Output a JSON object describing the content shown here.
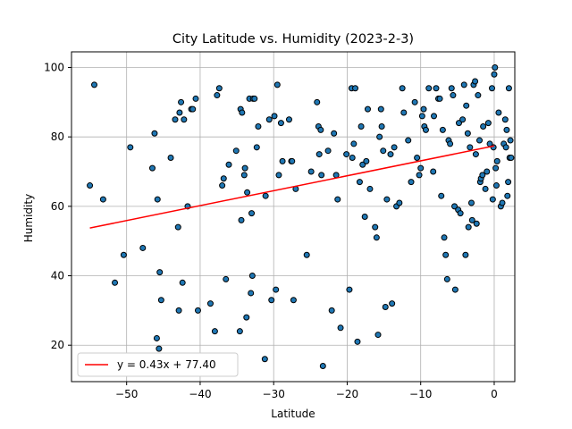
{
  "chart_data": {
    "type": "scatter",
    "title": "City Latitude vs. Humidity (2023-2-3)",
    "xlabel": "Latitude",
    "ylabel": "Humidity",
    "xlim": [
      -57.5,
      2.8
    ],
    "ylim": [
      9.5,
      104.5
    ],
    "xticks": [
      -50,
      -40,
      -30,
      -20,
      -10,
      0
    ],
    "yticks": [
      20,
      40,
      60,
      80,
      100
    ],
    "grid": true,
    "marker_color": "#1f77b4",
    "marker_edge": "#000000",
    "regression": {
      "slope": 0.43,
      "intercept": 77.4,
      "x_range": [
        -55,
        0
      ],
      "color": "#ff0000",
      "label": "y = 0.43x + 77.40"
    },
    "legend_position": "lower-left",
    "points": [
      [
        -55,
        66
      ],
      [
        -54.4,
        95
      ],
      [
        -53.2,
        62
      ],
      [
        -51.6,
        38
      ],
      [
        -50.4,
        46
      ],
      [
        -49.5,
        77
      ],
      [
        -47.8,
        48
      ],
      [
        -46.5,
        71
      ],
      [
        -46.2,
        81
      ],
      [
        -45.9,
        22
      ],
      [
        -45.8,
        62
      ],
      [
        -45.6,
        19
      ],
      [
        -45.5,
        41
      ],
      [
        -45.3,
        33
      ],
      [
        -44,
        74
      ],
      [
        -43.4,
        85
      ],
      [
        -43,
        54
      ],
      [
        -42.9,
        30
      ],
      [
        -42.8,
        87
      ],
      [
        -42.6,
        90
      ],
      [
        -42.4,
        38
      ],
      [
        -42.2,
        85
      ],
      [
        -41.7,
        60
      ],
      [
        -41.2,
        88
      ],
      [
        -41,
        88
      ],
      [
        -40.6,
        91
      ],
      [
        -40.3,
        30
      ],
      [
        -39,
        16
      ],
      [
        -38.6,
        32
      ],
      [
        -38,
        24
      ],
      [
        -37.7,
        92
      ],
      [
        -37.4,
        94
      ],
      [
        -37,
        66
      ],
      [
        -36.8,
        68
      ],
      [
        -36.5,
        39
      ],
      [
        -36.1,
        72
      ],
      [
        -35.8,
        16
      ],
      [
        -35.1,
        76
      ],
      [
        -34.6,
        24
      ],
      [
        -34.4,
        56
      ],
      [
        -34.5,
        88
      ],
      [
        -34.3,
        87
      ],
      [
        -34,
        69
      ],
      [
        -33.9,
        71
      ],
      [
        -33.7,
        28
      ],
      [
        -33.6,
        64
      ],
      [
        -33.3,
        91
      ],
      [
        -33.1,
        35
      ],
      [
        -33,
        58
      ],
      [
        -32.9,
        40
      ],
      [
        -32.8,
        91
      ],
      [
        -32.6,
        91
      ],
      [
        -32.3,
        77
      ],
      [
        -32.1,
        83
      ],
      [
        -31.2,
        16
      ],
      [
        -31.1,
        63
      ],
      [
        -30.6,
        85
      ],
      [
        -30.3,
        33
      ],
      [
        -29.9,
        86
      ],
      [
        -29.7,
        36
      ],
      [
        -29.5,
        95
      ],
      [
        -29.3,
        69
      ],
      [
        -29,
        84
      ],
      [
        -28.8,
        73
      ],
      [
        -27.9,
        85
      ],
      [
        -27.6,
        73
      ],
      [
        -27.5,
        73
      ],
      [
        -27.3,
        33
      ],
      [
        -27,
        65
      ],
      [
        -25.5,
        46
      ],
      [
        -24.9,
        70
      ],
      [
        -24.1,
        90
      ],
      [
        -23.9,
        83
      ],
      [
        -23.8,
        75
      ],
      [
        -23.6,
        82
      ],
      [
        -23.5,
        69
      ],
      [
        -23.3,
        14
      ],
      [
        -22.6,
        76
      ],
      [
        -22.1,
        30
      ],
      [
        -21.8,
        81
      ],
      [
        -21.5,
        69
      ],
      [
        -21.3,
        62
      ],
      [
        -20.9,
        25
      ],
      [
        -20.1,
        75
      ],
      [
        -19.7,
        36
      ],
      [
        -19.4,
        94
      ],
      [
        -19.3,
        74
      ],
      [
        -19.1,
        78
      ],
      [
        -18.9,
        94
      ],
      [
        -18.6,
        21
      ],
      [
        -18.3,
        67
      ],
      [
        -18.1,
        83
      ],
      [
        -17.9,
        72
      ],
      [
        -17.6,
        57
      ],
      [
        -17.4,
        73
      ],
      [
        -17.2,
        88
      ],
      [
        -16.9,
        65
      ],
      [
        -16.2,
        54
      ],
      [
        -16,
        51
      ],
      [
        -15.8,
        23
      ],
      [
        -15.6,
        80
      ],
      [
        -15.4,
        88
      ],
      [
        -15.3,
        83
      ],
      [
        -15.1,
        76
      ],
      [
        -14.8,
        31
      ],
      [
        -14.6,
        62
      ],
      [
        -14.1,
        75
      ],
      [
        -13.9,
        32
      ],
      [
        -13.6,
        77
      ],
      [
        -13.3,
        60
      ],
      [
        -12.9,
        61
      ],
      [
        -12.5,
        94
      ],
      [
        -12.3,
        87
      ],
      [
        -11.7,
        79
      ],
      [
        -11.3,
        67
      ],
      [
        -10.8,
        90
      ],
      [
        -10.5,
        74
      ],
      [
        -10.2,
        69
      ],
      [
        -10,
        71
      ],
      [
        -9.8,
        86
      ],
      [
        -9.6,
        88
      ],
      [
        -9.5,
        83
      ],
      [
        -9.3,
        82
      ],
      [
        -8.9,
        94
      ],
      [
        -8.3,
        70
      ],
      [
        -8.2,
        86
      ],
      [
        -7.9,
        94
      ],
      [
        -7.6,
        91
      ],
      [
        -7.4,
        91
      ],
      [
        -7.2,
        63
      ],
      [
        -7,
        82
      ],
      [
        -6.8,
        51
      ],
      [
        -6.6,
        46
      ],
      [
        -6.4,
        39
      ],
      [
        -6.2,
        79
      ],
      [
        -6,
        78
      ],
      [
        -5.8,
        94
      ],
      [
        -5.6,
        92
      ],
      [
        -5.4,
        60
      ],
      [
        -5.3,
        36
      ],
      [
        -4.9,
        59
      ],
      [
        -4.8,
        84
      ],
      [
        -4.6,
        58
      ],
      [
        -4.3,
        85
      ],
      [
        -4.1,
        95
      ],
      [
        -3.9,
        46
      ],
      [
        -3.8,
        89
      ],
      [
        -3.6,
        81
      ],
      [
        -3.5,
        54
      ],
      [
        -3.3,
        77
      ],
      [
        -3.1,
        61
      ],
      [
        -3,
        56
      ],
      [
        -2.8,
        95
      ],
      [
        -2.6,
        96
      ],
      [
        -2.5,
        75
      ],
      [
        -2.4,
        55
      ],
      [
        -2.2,
        92
      ],
      [
        -2,
        79
      ],
      [
        -1.9,
        67
      ],
      [
        -1.8,
        68
      ],
      [
        -1.6,
        69
      ],
      [
        -1.5,
        83
      ],
      [
        -1.2,
        65
      ],
      [
        -1,
        70
      ],
      [
        -0.8,
        84
      ],
      [
        -0.6,
        78
      ],
      [
        -0.3,
        94
      ],
      [
        -0.2,
        62
      ],
      [
        -0.1,
        77
      ],
      [
        0,
        98
      ],
      [
        0.1,
        100
      ],
      [
        0.2,
        71
      ],
      [
        0.3,
        66
      ],
      [
        0.4,
        73
      ],
      [
        0.6,
        87
      ],
      [
        0.9,
        60
      ],
      [
        1.1,
        61
      ],
      [
        1.3,
        78
      ],
      [
        1.5,
        85
      ],
      [
        1.6,
        77
      ],
      [
        1.7,
        82
      ],
      [
        1.8,
        63
      ],
      [
        1.9,
        67
      ],
      [
        2,
        94
      ],
      [
        2.1,
        74
      ],
      [
        2.2,
        79
      ],
      [
        2.3,
        74
      ]
    ]
  }
}
